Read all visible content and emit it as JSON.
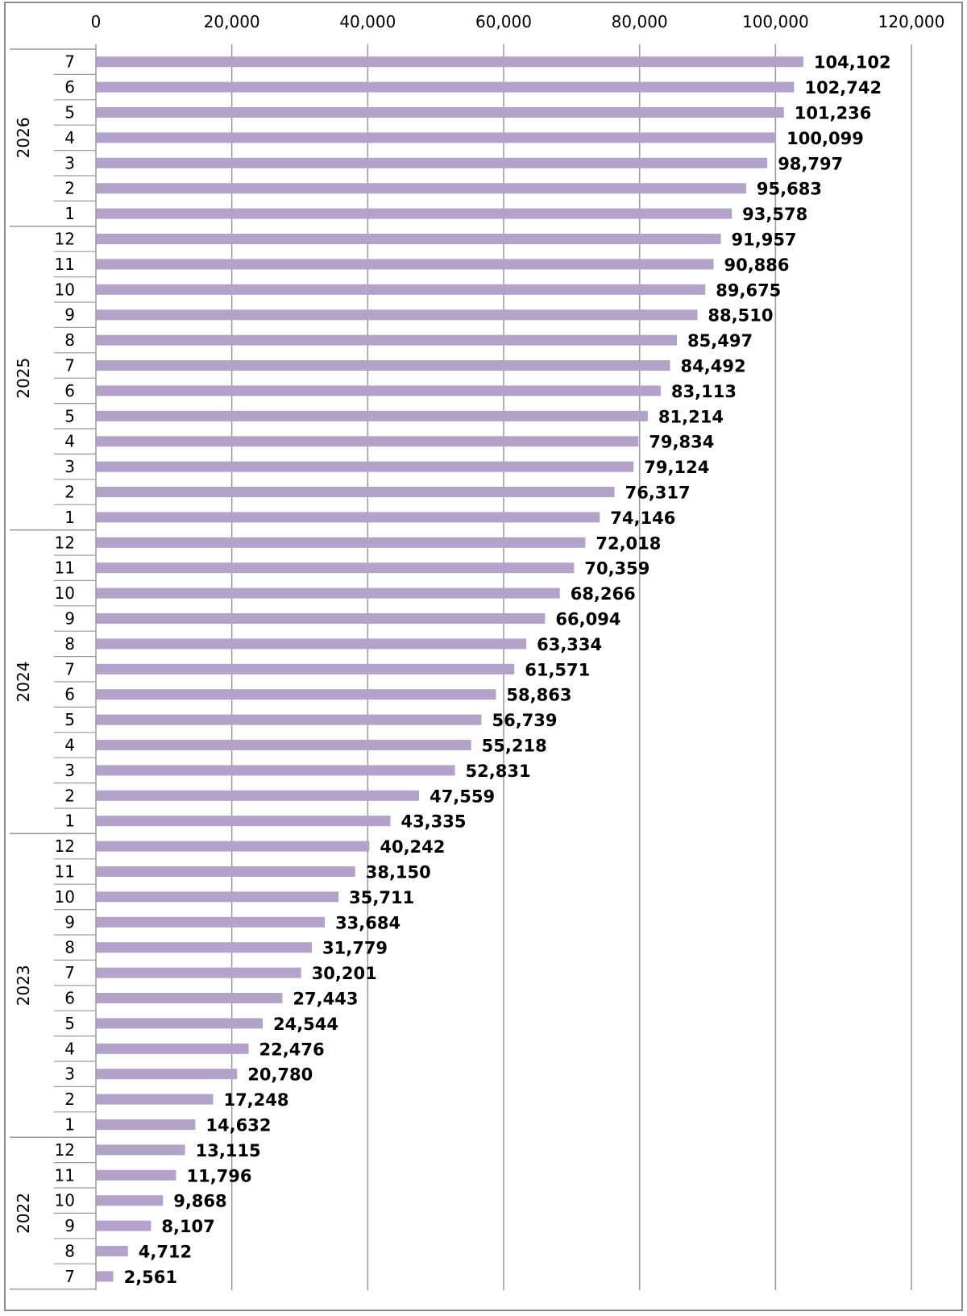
{
  "chart_data": {
    "type": "bar",
    "orientation": "horizontal",
    "title": "",
    "xlabel": "",
    "ylabel": "",
    "xlim": [
      0,
      120000
    ],
    "x_ticks": [
      0,
      20000,
      40000,
      60000,
      80000,
      100000,
      120000
    ],
    "x_tick_labels": [
      "0",
      "20,000",
      "40,000",
      "60,000",
      "80,000",
      "100,000",
      "120,000"
    ],
    "x_axis_position": "top",
    "grid": true,
    "legend": "none",
    "bar_color": "#b3a2c9",
    "groups": [
      {
        "year": "2026",
        "items": [
          {
            "month": "7",
            "value": 104102,
            "label": "104,102"
          },
          {
            "month": "6",
            "value": 102742,
            "label": "102,742"
          },
          {
            "month": "5",
            "value": 101236,
            "label": "101,236"
          },
          {
            "month": "4",
            "value": 100099,
            "label": "100,099"
          },
          {
            "month": "3",
            "value": 98797,
            "label": "98,797"
          },
          {
            "month": "2",
            "value": 95683,
            "label": "95,683"
          },
          {
            "month": "1",
            "value": 93578,
            "label": "93,578"
          }
        ]
      },
      {
        "year": "2025",
        "items": [
          {
            "month": "12",
            "value": 91957,
            "label": "91,957"
          },
          {
            "month": "11",
            "value": 90886,
            "label": "90,886"
          },
          {
            "month": "10",
            "value": 89675,
            "label": "89,675"
          },
          {
            "month": "9",
            "value": 88510,
            "label": "88,510"
          },
          {
            "month": "8",
            "value": 85497,
            "label": "85,497"
          },
          {
            "month": "7",
            "value": 84492,
            "label": "84,492"
          },
          {
            "month": "6",
            "value": 83113,
            "label": "83,113"
          },
          {
            "month": "5",
            "value": 81214,
            "label": "81,214"
          },
          {
            "month": "4",
            "value": 79834,
            "label": "79,834"
          },
          {
            "month": "3",
            "value": 79124,
            "label": "79,124"
          },
          {
            "month": "2",
            "value": 76317,
            "label": "76,317"
          },
          {
            "month": "1",
            "value": 74146,
            "label": "74,146"
          }
        ]
      },
      {
        "year": "2024",
        "items": [
          {
            "month": "12",
            "value": 72018,
            "label": "72,018"
          },
          {
            "month": "11",
            "value": 70359,
            "label": "70,359"
          },
          {
            "month": "10",
            "value": 68266,
            "label": "68,266"
          },
          {
            "month": "9",
            "value": 66094,
            "label": "66,094"
          },
          {
            "month": "8",
            "value": 63334,
            "label": "63,334"
          },
          {
            "month": "7",
            "value": 61571,
            "label": "61,571"
          },
          {
            "month": "6",
            "value": 58863,
            "label": "58,863"
          },
          {
            "month": "5",
            "value": 56739,
            "label": "56,739"
          },
          {
            "month": "4",
            "value": 55218,
            "label": "55,218"
          },
          {
            "month": "3",
            "value": 52831,
            "label": "52,831"
          },
          {
            "month": "2",
            "value": 47559,
            "label": "47,559"
          },
          {
            "month": "1",
            "value": 43335,
            "label": "43,335"
          }
        ]
      },
      {
        "year": "2023",
        "items": [
          {
            "month": "12",
            "value": 40242,
            "label": "40,242"
          },
          {
            "month": "11",
            "value": 38150,
            "label": "38,150"
          },
          {
            "month": "10",
            "value": 35711,
            "label": "35,711"
          },
          {
            "month": "9",
            "value": 33684,
            "label": "33,684"
          },
          {
            "month": "8",
            "value": 31779,
            "label": "31,779"
          },
          {
            "month": "7",
            "value": 30201,
            "label": "30,201"
          },
          {
            "month": "6",
            "value": 27443,
            "label": "27,443"
          },
          {
            "month": "5",
            "value": 24544,
            "label": "24,544"
          },
          {
            "month": "4",
            "value": 22476,
            "label": "22,476"
          },
          {
            "month": "3",
            "value": 20780,
            "label": "20,780"
          },
          {
            "month": "2",
            "value": 17248,
            "label": "17,248"
          },
          {
            "month": "1",
            "value": 14632,
            "label": "14,632"
          }
        ]
      },
      {
        "year": "2022",
        "items": [
          {
            "month": "12",
            "value": 13115,
            "label": "13,115"
          },
          {
            "month": "11",
            "value": 11796,
            "label": "11,796"
          },
          {
            "month": "10",
            "value": 9868,
            "label": "9,868"
          },
          {
            "month": "9",
            "value": 8107,
            "label": "8,107"
          },
          {
            "month": "8",
            "value": 4712,
            "label": "4,712"
          },
          {
            "month": "7",
            "value": 2561,
            "label": "2,561"
          }
        ]
      }
    ]
  }
}
